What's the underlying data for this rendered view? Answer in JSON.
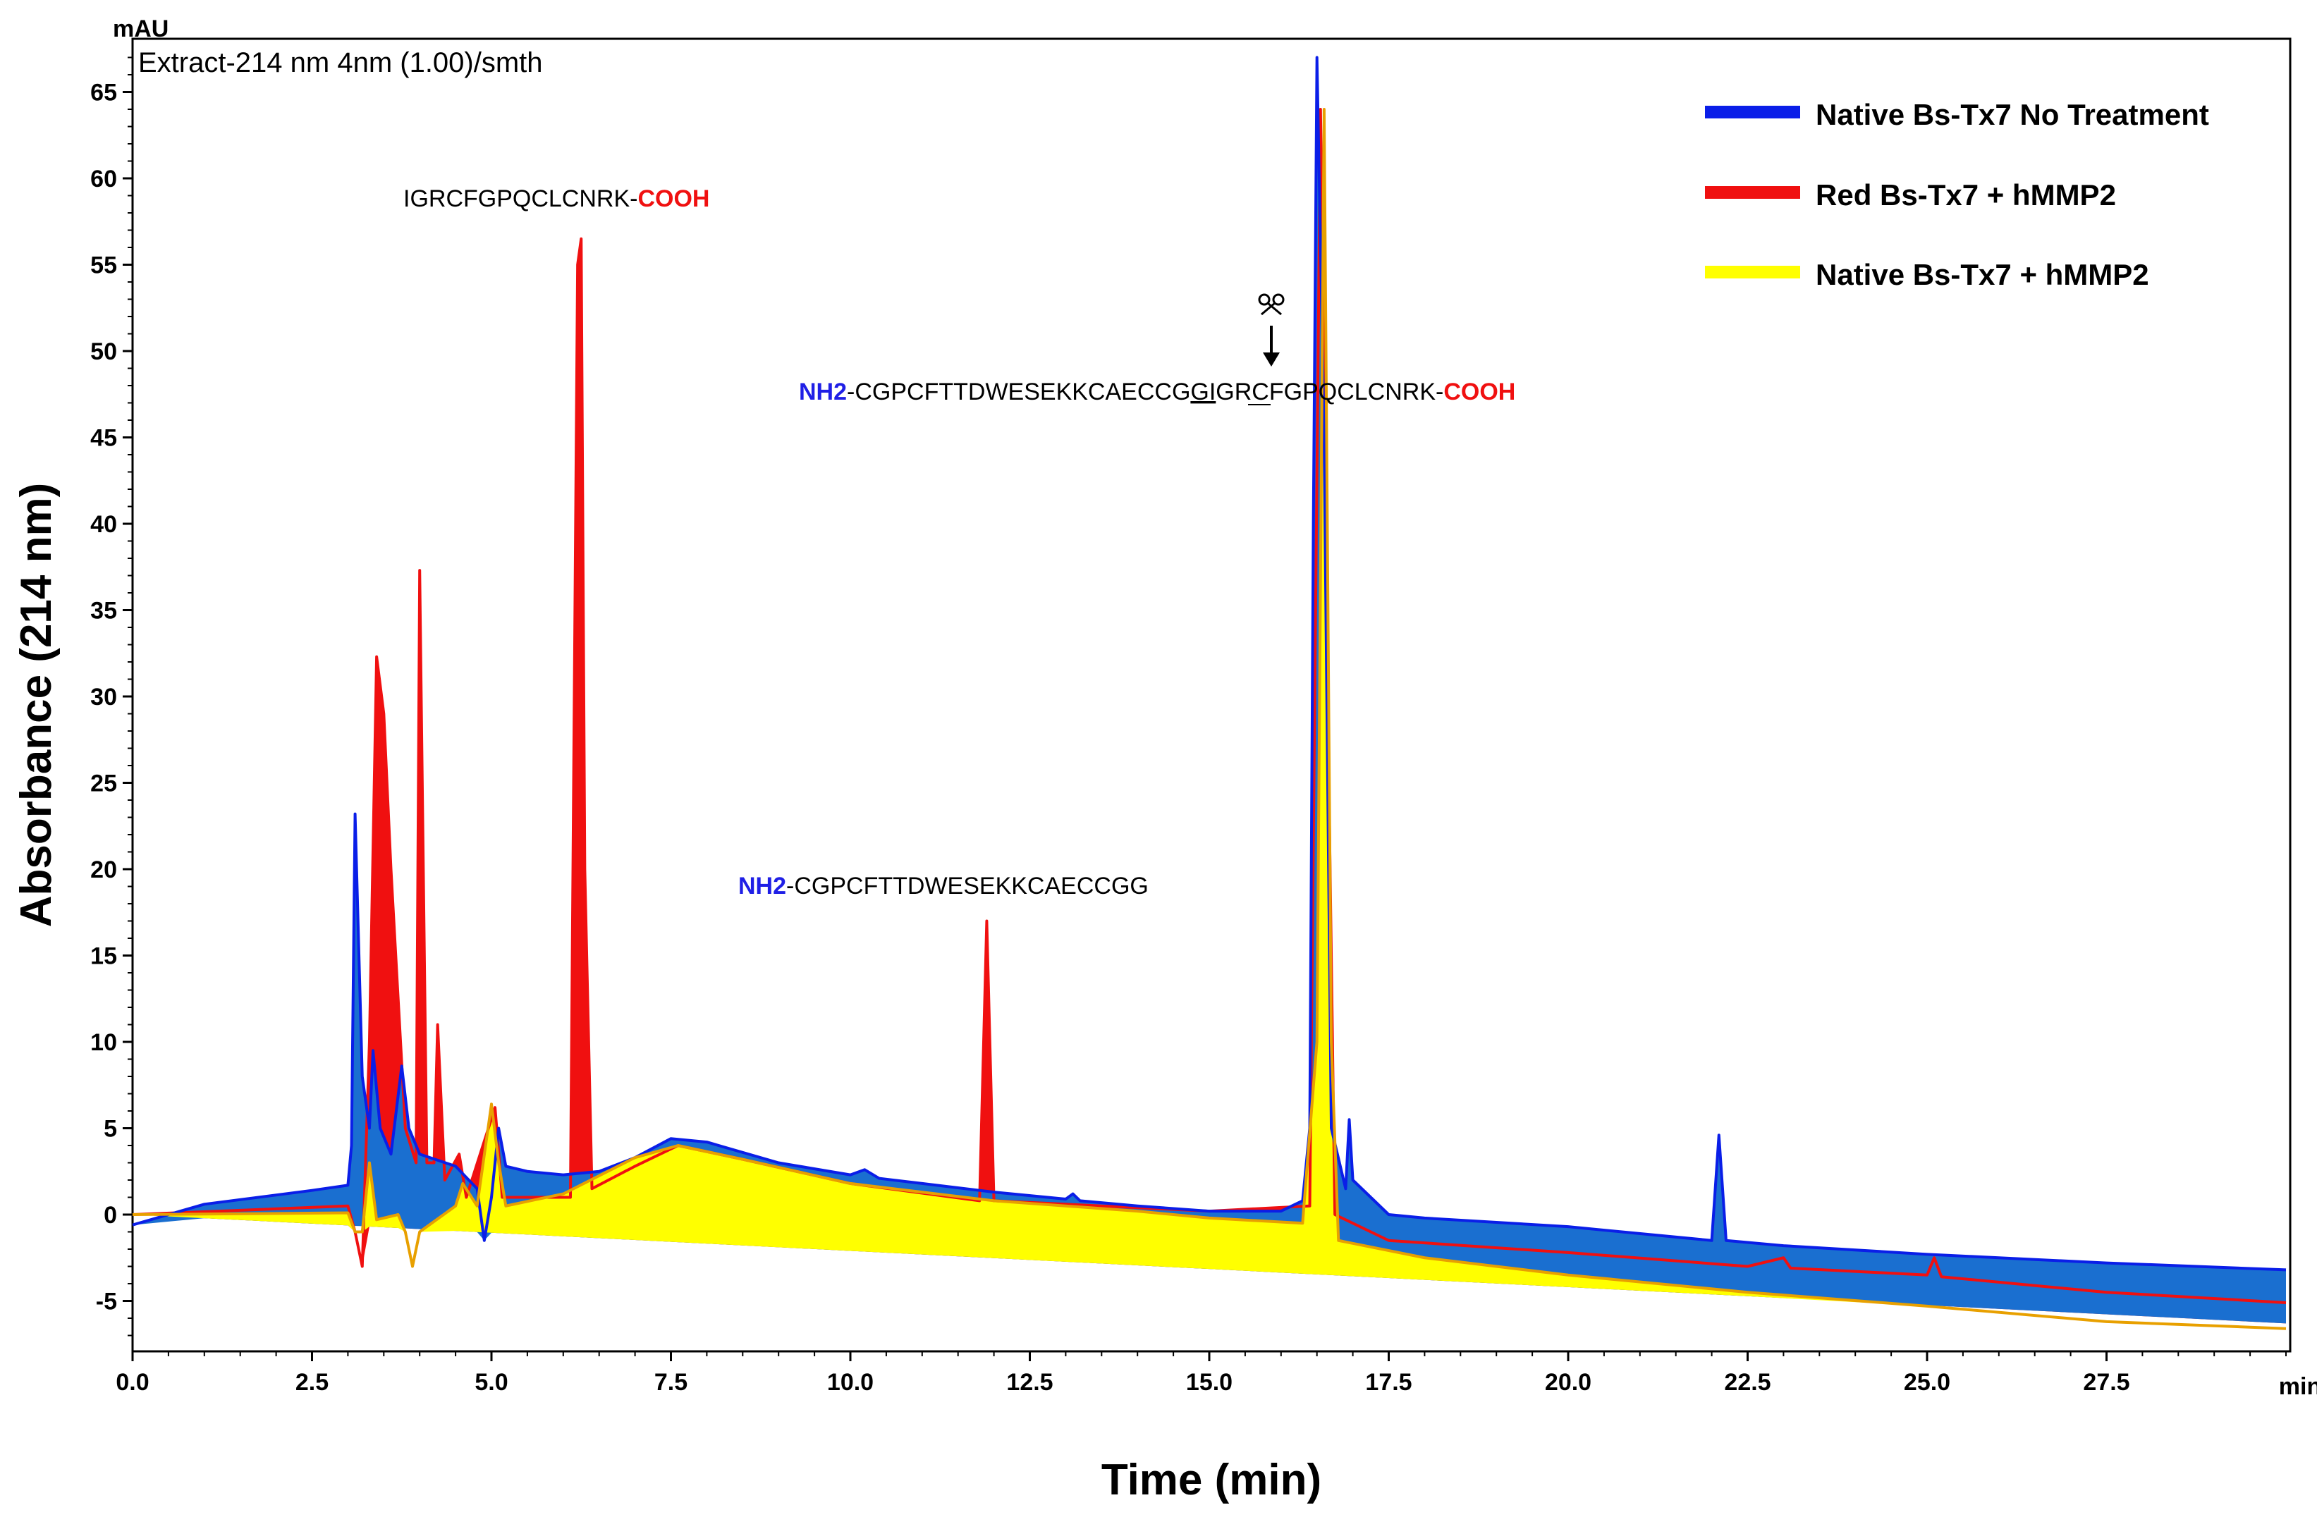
{
  "chart_data": {
    "type": "line",
    "title": "Extract-214 nm 4nm (1.00)/smth",
    "unit_label": "mAU",
    "xlabel": "Time (min)",
    "ylabel": "Absorbance (214 nm)",
    "x_unit_label": "min",
    "xlim": [
      0,
      30
    ],
    "ylim": [
      -7.5,
      68
    ],
    "xticks": [
      "0.0",
      "2.5",
      "5.0",
      "7.5",
      "10.0",
      "12.5",
      "15.0",
      "17.5",
      "20.0",
      "22.5",
      "25.0",
      "27.5"
    ],
    "yticks": [
      "-5",
      "0",
      "5",
      "10",
      "15",
      "20",
      "25",
      "30",
      "35",
      "40",
      "45",
      "50",
      "55",
      "60",
      "65"
    ],
    "legend": {
      "position": "top-right",
      "entries": [
        {
          "label": "Native Bs-Tx7 No Treatment",
          "color": "#0a1ee8"
        },
        {
          "label": "Red Bs-Tx7 + hMMP2",
          "color": "#f01010"
        },
        {
          "label": "Native Bs-Tx7 + hMMP2",
          "color": "#ffff00"
        }
      ]
    },
    "series": [
      {
        "name": "Native Bs-Tx7 No Treatment",
        "color": "#0a1ee8",
        "fill": "#1a6fd0",
        "points": [
          [
            0,
            -0.6
          ],
          [
            1,
            0.6
          ],
          [
            2.5,
            1.4
          ],
          [
            3.0,
            1.7
          ],
          [
            3.05,
            4
          ],
          [
            3.1,
            23.2
          ],
          [
            3.2,
            8
          ],
          [
            3.3,
            5
          ],
          [
            3.35,
            9.5
          ],
          [
            3.45,
            5
          ],
          [
            3.6,
            3.5
          ],
          [
            3.75,
            8.6
          ],
          [
            3.85,
            5
          ],
          [
            4.0,
            3.5
          ],
          [
            4.5,
            2.8
          ],
          [
            4.8,
            1.5
          ],
          [
            4.9,
            -1.5
          ],
          [
            5.0,
            1
          ],
          [
            5.1,
            5
          ],
          [
            5.2,
            2.8
          ],
          [
            5.5,
            2.5
          ],
          [
            6.0,
            2.3
          ],
          [
            6.5,
            2.5
          ],
          [
            7.0,
            3.3
          ],
          [
            7.5,
            4.4
          ],
          [
            8.0,
            4.2
          ],
          [
            9.0,
            3.0
          ],
          [
            10.0,
            2.3
          ],
          [
            10.2,
            2.6
          ],
          [
            10.4,
            2.1
          ],
          [
            11.0,
            1.8
          ],
          [
            12.0,
            1.3
          ],
          [
            13.0,
            0.9
          ],
          [
            13.1,
            1.2
          ],
          [
            13.2,
            0.8
          ],
          [
            14.0,
            0.5
          ],
          [
            15.0,
            0.2
          ],
          [
            16.0,
            0.2
          ],
          [
            16.3,
            0.8
          ],
          [
            16.4,
            5
          ],
          [
            16.45,
            40
          ],
          [
            16.5,
            67
          ],
          [
            16.6,
            45
          ],
          [
            16.7,
            5
          ],
          [
            16.9,
            1.5
          ],
          [
            16.95,
            5.5
          ],
          [
            17.0,
            2
          ],
          [
            17.5,
            0
          ],
          [
            18.0,
            -0.2
          ],
          [
            20.0,
            -0.7
          ],
          [
            22.0,
            -1.5
          ],
          [
            22.1,
            4.6
          ],
          [
            22.2,
            -1.5
          ],
          [
            23.0,
            -1.8
          ],
          [
            25.0,
            -2.3
          ],
          [
            27.5,
            -2.8
          ],
          [
            30,
            -3.2
          ]
        ]
      },
      {
        "name": "Red Bs-Tx7 + hMMP2",
        "color": "#f01010",
        "fill": "#f01010",
        "points": [
          [
            0,
            0
          ],
          [
            3.0,
            0.5
          ],
          [
            3.1,
            -1
          ],
          [
            3.2,
            -3
          ],
          [
            3.3,
            10
          ],
          [
            3.4,
            32.3
          ],
          [
            3.5,
            29
          ],
          [
            3.6,
            20
          ],
          [
            3.8,
            5
          ],
          [
            3.95,
            3
          ],
          [
            4.0,
            37.3
          ],
          [
            4.1,
            3
          ],
          [
            4.2,
            3
          ],
          [
            4.25,
            11
          ],
          [
            4.35,
            2
          ],
          [
            4.55,
            3.5
          ],
          [
            4.65,
            1
          ],
          [
            5.05,
            6.2
          ],
          [
            5.15,
            1
          ],
          [
            6.1,
            1
          ],
          [
            6.2,
            55
          ],
          [
            6.25,
            56.5
          ],
          [
            6.3,
            20
          ],
          [
            6.4,
            1.5
          ],
          [
            7.0,
            2.8
          ],
          [
            7.6,
            4.0
          ],
          [
            8.5,
            3.2
          ],
          [
            10.0,
            1.8
          ],
          [
            11.8,
            0.8
          ],
          [
            11.9,
            17
          ],
          [
            12.0,
            0.8
          ],
          [
            13.0,
            0.6
          ],
          [
            15.0,
            0.2
          ],
          [
            16.4,
            0.5
          ],
          [
            16.55,
            64
          ],
          [
            16.65,
            30
          ],
          [
            16.75,
            0
          ],
          [
            17.5,
            -1.5
          ],
          [
            20.0,
            -2.2
          ],
          [
            22.5,
            -3.0
          ],
          [
            23.0,
            -2.5
          ],
          [
            23.1,
            -3.1
          ],
          [
            25.0,
            -3.5
          ],
          [
            25.1,
            -2.5
          ],
          [
            25.2,
            -3.6
          ],
          [
            27.5,
            -4.5
          ],
          [
            30,
            -5.1
          ]
        ]
      },
      {
        "name": "Native Bs-Tx7 + hMMP2",
        "color": "#e8a000",
        "fill": "#ffff00",
        "points": [
          [
            0,
            0
          ],
          [
            3.0,
            0.1
          ],
          [
            3.1,
            -1
          ],
          [
            3.2,
            -1
          ],
          [
            3.3,
            3
          ],
          [
            3.4,
            -0.3
          ],
          [
            3.7,
            0
          ],
          [
            3.8,
            -1
          ],
          [
            3.9,
            -3
          ],
          [
            4.0,
            -1
          ],
          [
            4.5,
            0.5
          ],
          [
            4.6,
            1.8
          ],
          [
            4.8,
            0.5
          ],
          [
            5.0,
            6.4
          ],
          [
            5.1,
            3
          ],
          [
            5.2,
            0.5
          ],
          [
            6.0,
            1.2
          ],
          [
            7.0,
            3.3
          ],
          [
            7.6,
            4.0
          ],
          [
            8.5,
            3.2
          ],
          [
            10.0,
            1.8
          ],
          [
            12.0,
            0.8
          ],
          [
            14.0,
            0.2
          ],
          [
            15.0,
            -0.2
          ],
          [
            16.3,
            -0.5
          ],
          [
            16.5,
            10
          ],
          [
            16.6,
            64
          ],
          [
            16.7,
            10
          ],
          [
            16.8,
            -1.5
          ],
          [
            18.0,
            -2.5
          ],
          [
            20.0,
            -3.5
          ],
          [
            22.5,
            -4.5
          ],
          [
            25.0,
            -5.3
          ],
          [
            27.5,
            -6.2
          ],
          [
            30,
            -6.6
          ]
        ]
      }
    ],
    "annotations": {
      "fragment_c": {
        "text": "IGRCFGPQCLCNRK-",
        "suffix": "COOH"
      },
      "full_sequence": {
        "prefix": "NH2",
        "text_a": "-CGPCFTTDWESEKKCAECCG",
        "cleavage_site": "GI",
        "text_b": "GRCFGPQCLCNRK-",
        "suffix": "COOH"
      },
      "fragment_n": {
        "prefix": "NH2",
        "text": "-CGPCFTTDWESEKKCAECCGG"
      }
    }
  }
}
